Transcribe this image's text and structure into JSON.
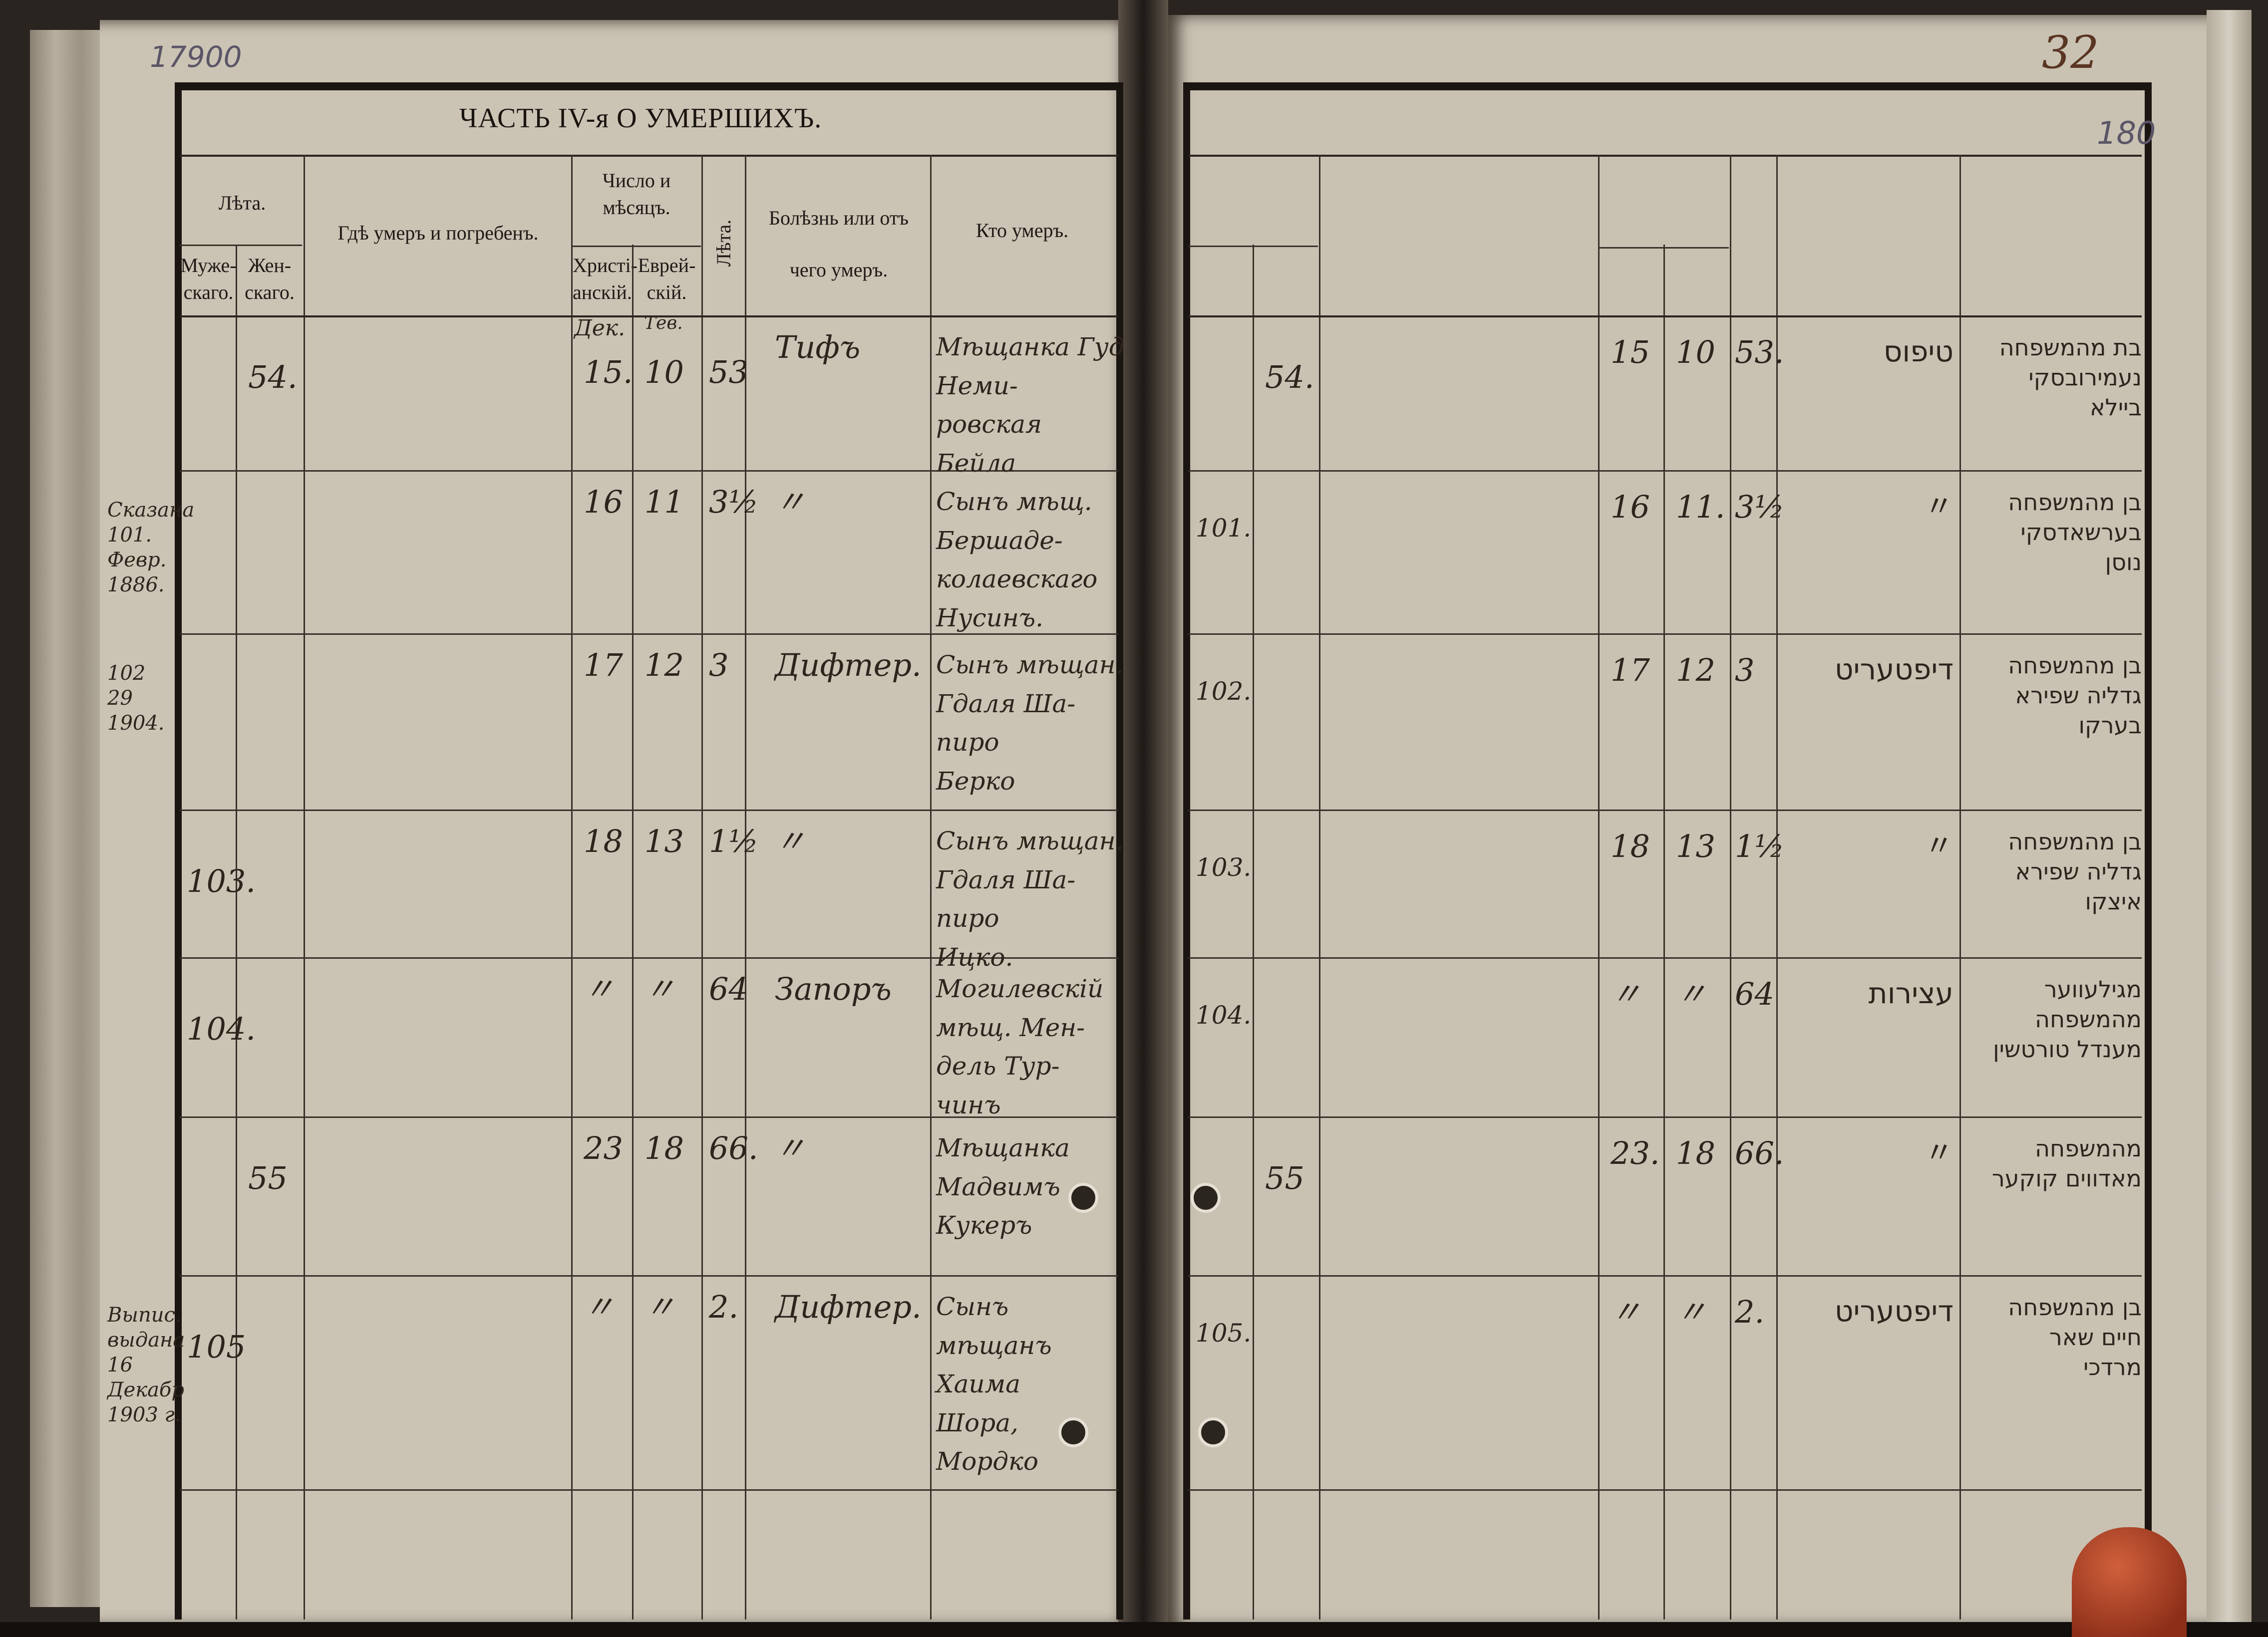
{
  "annotations": {
    "archive_number": "17900",
    "folio_number": "32",
    "pencil_number": "180"
  },
  "left_page": {
    "title": "ЧАСТЬ IV-я О УМЕРШИХЪ.",
    "headers": {
      "years": "Лѣта.",
      "male": "Муже-скаго.",
      "female": "Жен-скаго.",
      "place": "Гдѣ умеръ и погребенъ.",
      "date": "Число и мѣсяцъ.",
      "christian": "Христі-анскій.",
      "jewish": "Еврей-скій.",
      "age": "Лѣта.",
      "cause": "Болѣзнь или отъ чего умеръ.",
      "who": "Кто умеръ."
    },
    "month_labels": {
      "christian": "Дек.",
      "jewish": "Тев."
    },
    "rows": [
      {
        "male": "",
        "female": "54.",
        "christian_day": "15.",
        "jewish_day": "10",
        "age": "53",
        "cause": "Тифъ",
        "who": "Мѣщанка Гуд Неми-\nровская\nБейла",
        "margin": ""
      },
      {
        "male": "",
        "female": "",
        "christian_day": "16",
        "jewish_day": "11",
        "age": "3½",
        "cause": "〃",
        "who": "Сынъ мѣщ.\nБершаде-\nколаевскаго\nНусинъ.",
        "margin": "Сказана\n101.\nФевр.\n1886."
      },
      {
        "male": "",
        "female": "",
        "christian_day": "17",
        "jewish_day": "12",
        "age": "3",
        "cause": "Дифтер.",
        "who": "Сынъ мѣщан.\nГдаля Ша-\nпиро\nБерко",
        "margin": "102\n29\n1904."
      },
      {
        "male": "103.",
        "female": "",
        "christian_day": "18",
        "jewish_day": "13",
        "age": "1½",
        "cause": "〃",
        "who": "Сынъ мѣщан.\nГдаля Ша-\nпиро\nИцко.",
        "margin": ""
      },
      {
        "male": "104.",
        "female": "",
        "christian_day": "〃",
        "jewish_day": "〃",
        "age": "64",
        "cause": "Запоръ",
        "who": "Могилевскій\nмѣщ. Мен-\nдель Тур-\nчинъ",
        "margin": ""
      },
      {
        "male": "",
        "female": "55",
        "christian_day": "23",
        "jewish_day": "18",
        "age": "66.",
        "cause": "〃",
        "who": "Мѣщанка\nМадвимъ\nКукеръ",
        "margin": ""
      },
      {
        "male": "105",
        "female": "",
        "christian_day": "〃",
        "jewish_day": "〃",
        "age": "2.",
        "cause": "Дифтер.",
        "who": "Сынъ\nмѣщанъ\nХаима\nШора,\nМордко",
        "margin": "Выпис.\nвыдана\n16 Декабр\n1903 г."
      }
    ]
  },
  "right_page": {
    "rows": [
      {
        "male": "",
        "female": "54.",
        "christian_day": "15",
        "jewish_day": "10",
        "age": "53.",
        "cause": "טיפוס",
        "who": "בת מהמשפחה\nנעמירובסקי\nביילא"
      },
      {
        "male": "101.",
        "female": "",
        "christian_day": "16",
        "jewish_day": "11.",
        "age": "3½",
        "cause": "〃",
        "who": "בן מהמשפחה\nבערשאדסקי\nנוסן"
      },
      {
        "male": "102.",
        "female": "",
        "christian_day": "17",
        "jewish_day": "12",
        "age": "3",
        "cause": "דיפטעריט",
        "who": "בן מהמשפחה\nגדליה שפירא\nבערקו"
      },
      {
        "male": "103.",
        "female": "",
        "christian_day": "18",
        "jewish_day": "13",
        "age": "1½",
        "cause": "〃",
        "who": "בן מהמשפחה\nגדליה שפירא\nאיצקו"
      },
      {
        "male": "104.",
        "female": "",
        "christian_day": "〃",
        "jewish_day": "〃",
        "age": "64",
        "cause": "עצירות",
        "who": "מגילעווער מהמשפחה\nמענדל טורטשין"
      },
      {
        "male": "",
        "female": "55",
        "christian_day": "23.",
        "jewish_day": "18",
        "age": "66.",
        "cause": "〃",
        "who": "מהמשפחה\nמאדווים קוקער"
      },
      {
        "male": "105.",
        "female": "",
        "christian_day": "〃",
        "jewish_day": "〃",
        "age": "2.",
        "cause": "דיפטעריט",
        "who": "בן מהמשפחה\nחיים שאר\nמרדכי"
      }
    ]
  },
  "colors": {
    "paper_left": "#cbc3b4",
    "paper_right": "#c9c2b3",
    "ink": "#2e241d",
    "print": "#1b1512",
    "pencil": "#5a5566"
  }
}
